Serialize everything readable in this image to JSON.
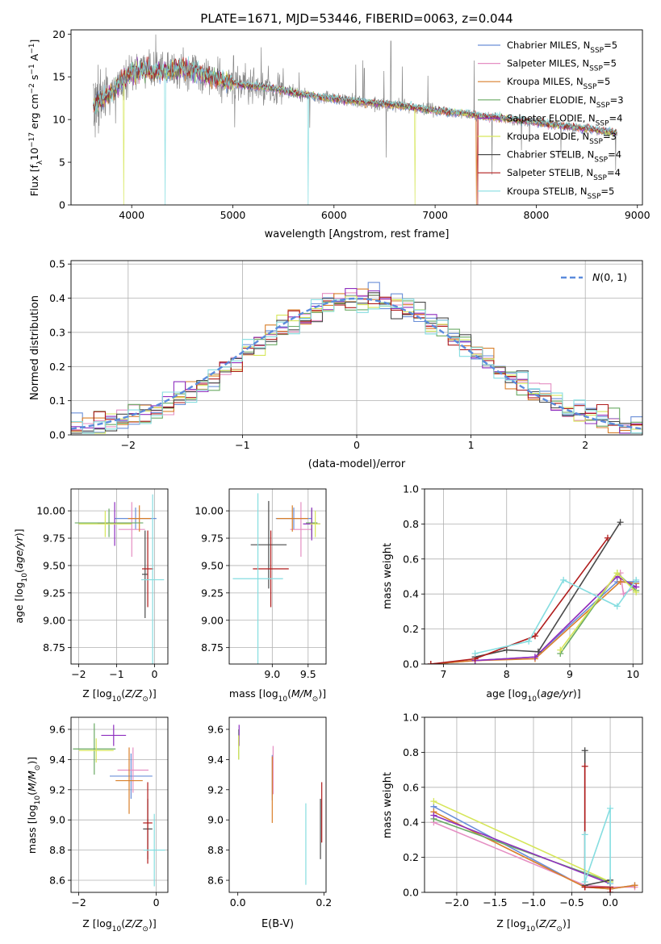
{
  "colors": {
    "Chabrier MILES": "#6a8fd8",
    "Salpeter MILES": "#e58fc3",
    "Kroupa MILES": "#d97f2a",
    "Chabrier ELODIE": "#6aaa64",
    "Salpeter ELODIE": "#8e2fbf",
    "Kroupa ELODIE": "#d6e65a",
    "Chabrier STELIB": "#4a4a4a",
    "Salpeter STELIB": "#b01c1c",
    "Kroupa STELIB": "#85dde0",
    "data": "#888888",
    "normal": "#5b8bdc"
  },
  "chart_data": [
    {
      "id": "spectrum",
      "type": "line",
      "title": "PLATE=1671, MJD=53446, FIBERID=0063, z=0.044",
      "xlabel": "wavelength [Angstrom, rest frame]",
      "ylabel": "Flux [f_λ 10^-17 erg cm^-2 s^-1 A^-1]",
      "xlim": [
        3400,
        9050
      ],
      "ylim": [
        0,
        20.5
      ],
      "xticks": [
        4000,
        5000,
        6000,
        7000,
        8000,
        9000
      ],
      "yticks": [
        0,
        5,
        10,
        15,
        20
      ],
      "grid": false,
      "legend": {
        "position": "top-right",
        "entries": [
          {
            "model": "Chabrier MILES",
            "label": "Chabrier MILES, N",
            "sub": "SSP",
            "suffix": "=5"
          },
          {
            "model": "Salpeter MILES",
            "label": "Salpeter MILES, N",
            "sub": "SSP",
            "suffix": "=5"
          },
          {
            "model": "Kroupa MILES",
            "label": "Kroupa MILES, N",
            "sub": "SSP",
            "suffix": "=5"
          },
          {
            "model": "Chabrier ELODIE",
            "label": "Chabrier ELODIE, N",
            "sub": "SSP",
            "suffix": "=3"
          },
          {
            "model": "Salpeter ELODIE",
            "label": "Salpeter ELODIE, N",
            "sub": "SSP",
            "suffix": "=4"
          },
          {
            "model": "Kroupa ELODIE",
            "label": "Kroupa ELODIE, N",
            "sub": "SSP",
            "suffix": "=3"
          },
          {
            "model": "Chabrier STELIB",
            "label": "Chabrier STELIB, N",
            "sub": "SSP",
            "suffix": "=4"
          },
          {
            "model": "Salpeter STELIB",
            "label": "Salpeter STELIB, N",
            "sub": "SSP",
            "suffix": "=4"
          },
          {
            "model": "Kroupa STELIB",
            "label": "Kroupa STELIB, N",
            "sub": "SSP",
            "suffix": "=5"
          }
        ]
      },
      "continuum": [
        [
          3620,
          11.5
        ],
        [
          3700,
          12.3
        ],
        [
          3800,
          13.2
        ],
        [
          3900,
          14.5
        ],
        [
          4000,
          15.5
        ],
        [
          4100,
          15.9
        ],
        [
          4300,
          15.5
        ],
        [
          4500,
          16.0
        ],
        [
          4700,
          15.3
        ],
        [
          4900,
          14.6
        ],
        [
          5100,
          14.0
        ],
        [
          5300,
          13.8
        ],
        [
          5500,
          13.4
        ],
        [
          5700,
          12.9
        ],
        [
          5900,
          12.6
        ],
        [
          6100,
          12.3
        ],
        [
          6300,
          12.0
        ],
        [
          6500,
          11.8
        ],
        [
          6700,
          11.6
        ],
        [
          6900,
          11.2
        ],
        [
          7100,
          10.9
        ],
        [
          7300,
          10.7
        ],
        [
          7500,
          10.3
        ],
        [
          7700,
          10.1
        ],
        [
          7900,
          9.8
        ],
        [
          8100,
          9.5
        ],
        [
          8300,
          9.2
        ],
        [
          8500,
          8.9
        ],
        [
          8700,
          8.6
        ],
        [
          8800,
          8.4
        ]
      ],
      "data_range": [
        3620,
        8800
      ],
      "model_drops": [
        {
          "x": 3920,
          "model": "Kroupa ELODIE"
        },
        {
          "x": 4330,
          "model": "Kroupa STELIB"
        },
        {
          "x": 5745,
          "model": "Kroupa STELIB"
        },
        {
          "x": 6800,
          "model": "Kroupa ELODIE"
        },
        {
          "x": 7410,
          "model": "Kroupa MILES"
        },
        {
          "x": 7420,
          "model": "Salpeter STELIB"
        }
      ]
    },
    {
      "id": "residuals",
      "type": "histogram",
      "xlabel": "(data-model)/error",
      "ylabel": "Normed distribution",
      "xlim": [
        -2.5,
        2.5
      ],
      "ylim": [
        0,
        0.51
      ],
      "xticks": [
        -2,
        -1,
        0,
        1,
        2
      ],
      "yticks": [
        0.0,
        0.1,
        0.2,
        0.3,
        0.4,
        0.5
      ],
      "grid": true,
      "bin_width": 0.1,
      "reference_curve": {
        "label": "N(0,1)",
        "style": "dashed"
      },
      "legend": {
        "position": "top-right"
      }
    },
    {
      "id": "age-vs-Z",
      "type": "errorbar",
      "xlabel": "Z [log10(Z/Z☉)]",
      "ylabel": "age  [log10(age/yr)]",
      "xlim": [
        -2.2,
        0.35
      ],
      "ylim": [
        8.6,
        10.2
      ],
      "xticks": [
        -2,
        -1,
        0
      ],
      "yticks": [
        8.75,
        9.0,
        9.25,
        9.5,
        9.75,
        10.0
      ],
      "grid": true,
      "points": [
        {
          "model": "Chabrier MILES",
          "x": -0.5,
          "y": 9.93,
          "xerr": 0.55,
          "yerr": 0.1
        },
        {
          "model": "Salpeter MILES",
          "x": -0.6,
          "y": 9.83,
          "xerr": 0.35,
          "yerr": 0.25
        },
        {
          "model": "Kroupa MILES",
          "x": -0.4,
          "y": 9.93,
          "xerr": 0.3,
          "yerr": 0.12
        },
        {
          "model": "Chabrier ELODIE",
          "x": -1.2,
          "y": 9.89,
          "xerr": 0.9,
          "yerr": 0.13
        },
        {
          "model": "Salpeter ELODIE",
          "x": -1.05,
          "y": 9.88,
          "xerr": 0.45,
          "yerr": 0.2
        },
        {
          "model": "Kroupa ELODIE",
          "x": -1.3,
          "y": 9.88,
          "xerr": 0.7,
          "yerr": 0.12
        },
        {
          "model": "Chabrier STELIB",
          "x": -0.25,
          "y": 9.42,
          "xerr": 0.08,
          "yerr": 0.4
        },
        {
          "model": "Salpeter STELIB",
          "x": -0.18,
          "y": 9.47,
          "xerr": 0.15,
          "yerr": 0.35
        },
        {
          "model": "Kroupa STELIB",
          "x": -0.05,
          "y": 9.37,
          "xerr": 0.3,
          "yerr": 0.78
        }
      ]
    },
    {
      "id": "age-vs-mass",
      "type": "errorbar",
      "xlabel": "mass [log10(M/M☉)]",
      "ylabel": "",
      "xlim": [
        8.4,
        9.75
      ],
      "ylim": [
        8.6,
        10.2
      ],
      "xticks": [
        9.0,
        9.5
      ],
      "yticks": [
        8.75,
        9.0,
        9.25,
        9.5,
        9.75,
        10.0
      ],
      "grid": true,
      "points": [
        {
          "model": "Chabrier MILES",
          "x": 9.3,
          "y": 9.93,
          "xerr": 0.25,
          "yerr": 0.1
        },
        {
          "model": "Salpeter MILES",
          "x": 9.4,
          "y": 9.83,
          "xerr": 0.15,
          "yerr": 0.25
        },
        {
          "model": "Kroupa MILES",
          "x": 9.28,
          "y": 9.93,
          "xerr": 0.22,
          "yerr": 0.12
        },
        {
          "model": "Chabrier ELODIE",
          "x": 9.55,
          "y": 9.89,
          "xerr": 0.08,
          "yerr": 0.13
        },
        {
          "model": "Salpeter ELODIE",
          "x": 9.55,
          "y": 9.88,
          "xerr": 0.12,
          "yerr": 0.15
        },
        {
          "model": "Kroupa ELODIE",
          "x": 9.6,
          "y": 9.88,
          "xerr": 0.07,
          "yerr": 0.12
        },
        {
          "model": "Chabrier STELIB",
          "x": 8.95,
          "y": 9.69,
          "xerr": 0.25,
          "yerr": 0.4
        },
        {
          "model": "Salpeter STELIB",
          "x": 8.98,
          "y": 9.47,
          "xerr": 0.25,
          "yerr": 0.35
        },
        {
          "model": "Kroupa STELIB",
          "x": 8.8,
          "y": 9.38,
          "xerr": 0.35,
          "yerr": 0.78
        }
      ]
    },
    {
      "id": "weight-vs-age",
      "type": "line",
      "xlabel": "age  [log10(age/yr)]",
      "ylabel": "mass weight",
      "xlim": [
        6.7,
        10.15
      ],
      "ylim": [
        0.0,
        1.0
      ],
      "xticks": [
        7,
        8,
        9,
        10
      ],
      "yticks": [
        0.0,
        0.2,
        0.4,
        0.6,
        0.8,
        1.0
      ],
      "grid": true,
      "series": [
        {
          "model": "Chabrier MILES",
          "points": [
            [
              6.8,
              0.0
            ],
            [
              7.5,
              0.02
            ],
            [
              8.45,
              0.04
            ],
            [
              9.75,
              0.47
            ],
            [
              10.05,
              0.47
            ]
          ]
        },
        {
          "model": "Salpeter MILES",
          "points": [
            [
              6.8,
              0.0
            ],
            [
              7.5,
              0.02
            ],
            [
              8.45,
              0.04
            ],
            [
              9.8,
              0.52
            ],
            [
              9.85,
              0.4
            ],
            [
              10.05,
              0.44
            ]
          ]
        },
        {
          "model": "Kroupa MILES",
          "points": [
            [
              6.8,
              0.0
            ],
            [
              7.5,
              0.02
            ],
            [
              8.45,
              0.03
            ],
            [
              9.8,
              0.47
            ],
            [
              10.05,
              0.46
            ]
          ]
        },
        {
          "model": "Chabrier ELODIE",
          "points": [
            [
              8.85,
              0.06
            ],
            [
              9.75,
              0.52
            ],
            [
              10.05,
              0.42
            ]
          ]
        },
        {
          "model": "Salpeter ELODIE",
          "points": [
            [
              7.5,
              0.02
            ],
            [
              8.45,
              0.04
            ],
            [
              9.75,
              0.5
            ],
            [
              10.05,
              0.44
            ]
          ]
        },
        {
          "model": "Kroupa ELODIE",
          "points": [
            [
              8.85,
              0.08
            ],
            [
              9.75,
              0.52
            ],
            [
              10.05,
              0.41
            ]
          ]
        },
        {
          "model": "Chabrier STELIB",
          "points": [
            [
              7.5,
              0.04
            ],
            [
              8.0,
              0.08
            ],
            [
              8.5,
              0.07
            ],
            [
              9.8,
              0.81
            ]
          ]
        },
        {
          "model": "Salpeter STELIB",
          "points": [
            [
              6.8,
              0.0
            ],
            [
              7.5,
              0.03
            ],
            [
              8.45,
              0.16
            ],
            [
              9.6,
              0.72
            ]
          ]
        },
        {
          "model": "Kroupa STELIB",
          "points": [
            [
              7.5,
              0.06
            ],
            [
              8.35,
              0.13
            ],
            [
              8.9,
              0.48
            ],
            [
              9.75,
              0.33
            ],
            [
              10.05,
              0.48
            ]
          ]
        }
      ]
    },
    {
      "id": "mass-vs-Z",
      "type": "errorbar",
      "xlabel": "Z [log10(Z/Z☉)]",
      "ylabel": "mass [log10(M/M☉)]",
      "xlim": [
        -2.2,
        0.3
      ],
      "ylim": [
        8.52,
        9.68
      ],
      "xticks": [
        -2,
        0
      ],
      "yticks": [
        8.6,
        8.8,
        9.0,
        9.2,
        9.4,
        9.6
      ],
      "grid": true,
      "points": [
        {
          "model": "Chabrier MILES",
          "x": -0.65,
          "y": 9.29,
          "xerr": 0.55,
          "yerr": 0.15
        },
        {
          "model": "Salpeter MILES",
          "x": -0.6,
          "y": 9.33,
          "xerr": 0.4,
          "yerr": 0.15
        },
        {
          "model": "Kroupa MILES",
          "x": -0.7,
          "y": 9.26,
          "xerr": 0.35,
          "yerr": 0.22
        },
        {
          "model": "Chabrier ELODIE",
          "x": -1.6,
          "y": 9.47,
          "xerr": 0.55,
          "yerr": 0.17
        },
        {
          "model": "Salpeter ELODIE",
          "x": -1.1,
          "y": 9.56,
          "xerr": 0.32,
          "yerr": 0.07
        },
        {
          "model": "Kroupa ELODIE",
          "x": -1.55,
          "y": 9.46,
          "xerr": 0.45,
          "yerr": 0.08
        },
        {
          "model": "Chabrier STELIB",
          "x": -0.22,
          "y": 8.94,
          "xerr": 0.12,
          "yerr": 0.2
        },
        {
          "model": "Salpeter STELIB",
          "x": -0.22,
          "y": 8.98,
          "xerr": 0.12,
          "yerr": 0.27
        },
        {
          "model": "Kroupa STELIB",
          "x": -0.05,
          "y": 8.8,
          "xerr": 0.28,
          "yerr": 0.24
        }
      ]
    },
    {
      "id": "mass-vs-ebv",
      "type": "errorbar",
      "xlabel": "E(B-V)",
      "ylabel": "",
      "xlim": [
        -0.02,
        0.205
      ],
      "ylim": [
        8.52,
        9.68
      ],
      "xticks": [
        0.0,
        0.2
      ],
      "yticks": [
        8.6,
        8.8,
        9.0,
        9.2,
        9.4,
        9.6
      ],
      "grid": false,
      "points": [
        {
          "model": "Chabrier MILES",
          "x": 0.08,
          "y": 9.28,
          "xerr": 0,
          "yerr": 0.15
        },
        {
          "model": "Salpeter MILES",
          "x": 0.082,
          "y": 9.33,
          "xerr": 0,
          "yerr": 0.16
        },
        {
          "model": "Kroupa MILES",
          "x": 0.08,
          "y": 9.2,
          "xerr": 0,
          "yerr": 0.22
        },
        {
          "model": "Chabrier ELODIE",
          "x": 0.002,
          "y": 9.5,
          "xerr": 0,
          "yerr": 0.1
        },
        {
          "model": "Salpeter ELODIE",
          "x": 0.003,
          "y": 9.56,
          "xerr": 0,
          "yerr": 0.07
        },
        {
          "model": "Kroupa ELODIE",
          "x": 0.002,
          "y": 9.48,
          "xerr": 0,
          "yerr": 0.08
        },
        {
          "model": "Chabrier STELIB",
          "x": 0.192,
          "y": 8.94,
          "xerr": 0,
          "yerr": 0.2
        },
        {
          "model": "Salpeter STELIB",
          "x": 0.195,
          "y": 9.05,
          "xerr": 0,
          "yerr": 0.2
        },
        {
          "model": "Kroupa STELIB",
          "x": 0.158,
          "y": 8.84,
          "xerr": 0,
          "yerr": 0.27
        }
      ]
    },
    {
      "id": "weight-vs-Z",
      "type": "line",
      "xlabel": "Z [log10(Z/Z☉)]",
      "ylabel": "mass weight",
      "xlim": [
        -2.42,
        0.42
      ],
      "ylim": [
        0.0,
        1.0
      ],
      "xticks": [
        -2.0,
        -1.5,
        -1.0,
        -0.5,
        0.0
      ],
      "yticks": [
        0.0,
        0.2,
        0.4,
        0.6,
        0.8,
        1.0
      ],
      "grid": true,
      "series": [
        {
          "model": "Chabrier MILES",
          "points": [
            [
              -2.3,
              0.49
            ],
            [
              -0.33,
              0.03
            ],
            [
              0.0,
              0.02
            ],
            [
              0.32,
              0.04
            ]
          ]
        },
        {
          "model": "Salpeter MILES",
          "points": [
            [
              -2.3,
              0.4
            ],
            [
              -0.33,
              0.04
            ],
            [
              0.0,
              0.03
            ],
            [
              0.32,
              0.03
            ]
          ]
        },
        {
          "model": "Kroupa MILES",
          "points": [
            [
              -2.3,
              0.46
            ],
            [
              -0.33,
              0.03
            ],
            [
              0.0,
              0.02
            ],
            [
              0.32,
              0.04
            ]
          ]
        },
        {
          "model": "Chabrier ELODIE",
          "points": [
            [
              -2.3,
              0.42
            ],
            [
              0.0,
              0.06
            ]
          ]
        },
        {
          "model": "Salpeter ELODIE",
          "points": [
            [
              -2.3,
              0.44
            ],
            [
              0.0,
              0.05
            ]
          ]
        },
        {
          "model": "Kroupa ELODIE",
          "points": [
            [
              -2.3,
              0.52
            ],
            [
              0.0,
              0.06
            ]
          ]
        },
        {
          "model": "Chabrier STELIB",
          "points": [
            [
              -0.33,
              0.81
            ],
            [
              -0.33,
              0.04
            ],
            [
              0.0,
              0.07
            ],
            [
              0.0,
              0.0
            ]
          ]
        },
        {
          "model": "Salpeter STELIB",
          "points": [
            [
              -0.33,
              0.72
            ],
            [
              -0.33,
              0.03
            ],
            [
              0.0,
              0.03
            ],
            [
              0.0,
              0.0
            ]
          ]
        },
        {
          "model": "Kroupa STELIB",
          "points": [
            [
              -0.33,
              0.33
            ],
            [
              -0.33,
              0.06
            ],
            [
              0.0,
              0.48
            ],
            [
              0.0,
              0.05
            ]
          ]
        }
      ]
    }
  ]
}
